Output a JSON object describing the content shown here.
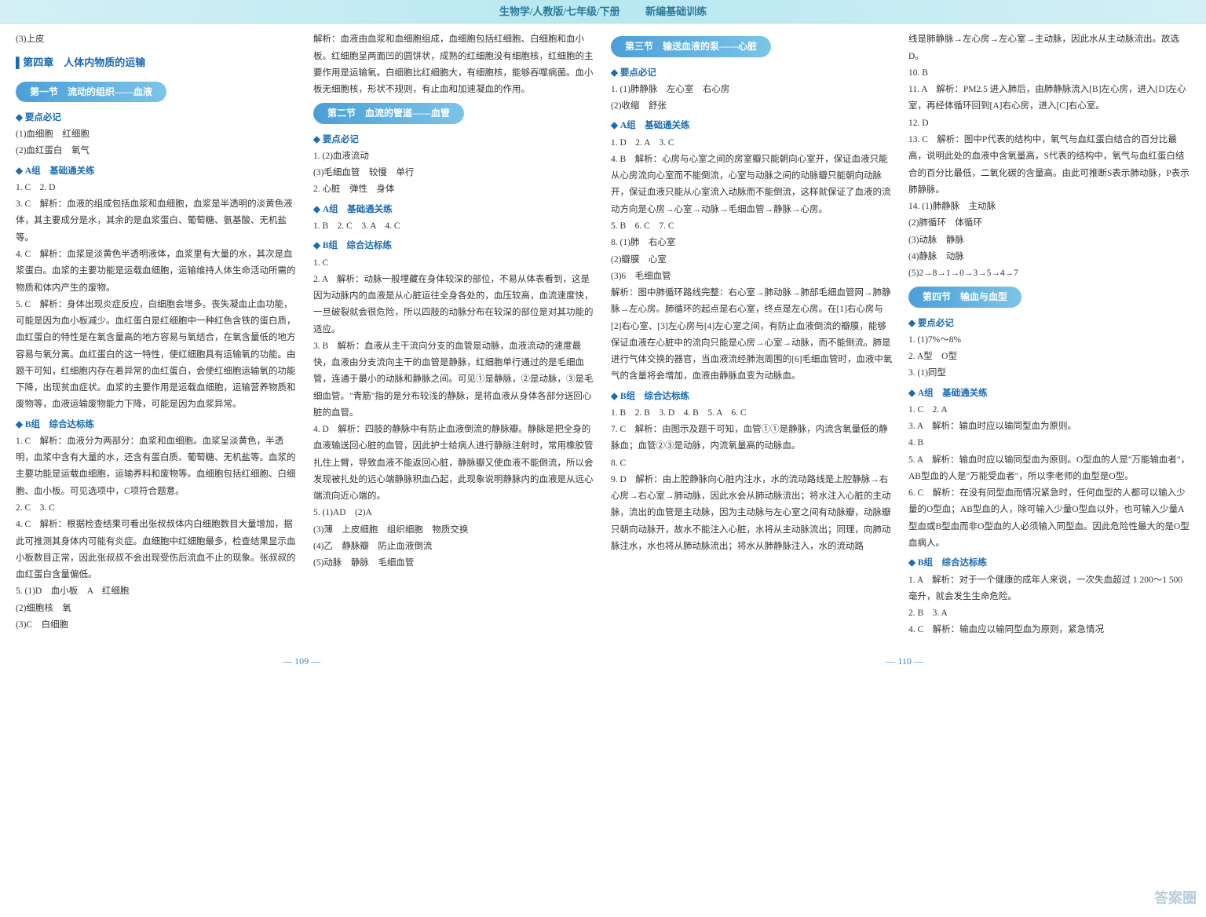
{
  "header": {
    "title": "生物学/人教版/七年级/下册",
    "rightText": "新编基础训练"
  },
  "col1": {
    "pre_item": "(3)上皮",
    "chapter": "第四章　人体内物质的运输",
    "section1_banner": "第一节　流动的组织——血液",
    "yao": "要点必记",
    "y1": "(1)血细胞　红细胞",
    "y2": "(2)血红蛋白　氧气",
    "groupA": "A组　基础通关练",
    "a1": "1. C　2. D",
    "a3": "3. C　解析：血液的组成包括血浆和血细胞，血浆是半透明的淡黄色液体，其主要成分是水，其余的是血浆蛋白、葡萄糖、氨基酸、无机盐等。",
    "a4": "4. C　解析：血浆是淡黄色半透明液体，血浆里有大量的水，其次是血浆蛋白。血浆的主要功能是运载血细胞，运输维持人体生命活动所需的物质和体内产生的废物。",
    "a5": "5. C　解析：身体出现炎症反应，白细胞会增多。丧失凝血止血功能，可能是因为血小板减少。血红蛋白是红细胞中一种红色含铁的蛋白质，血红蛋白的特性是在氧含量高的地方容易与氧结合，在氧含量低的地方容易与氧分离。血红蛋白的这一特性，使红细胞具有运输氧的功能。由题干可知，红细胞内存在着异常的血红蛋白，会使红细胞运输氧的功能下降，出现贫血症状。血浆的主要作用是运载血细胞，运输营养物质和废物等，血液运输废物能力下降，可能是因为血浆异常。",
    "groupB": "B组　综合达标练",
    "b1": "1. C　解析：血液分为两部分：血浆和血细胞。血浆呈淡黄色，半透明，血浆中含有大量的水，还含有蛋白质、葡萄糖、无机盐等。血浆的主要功能是运载血细胞，运输养料和废物等。血细胞包括红细胞、白细胞、血小板。可见选项中，C项符合题意。",
    "b2": "2. C　3. C",
    "b4": "4. C　解析：根据检查结果可看出张叔叔体内白细胞数目大量增加，据此可推测其身体内可能有炎症。血细胞中红细胞最多，检查结果显示血小板数目正常，因此张叔叔不会出现受伤后流血不止的现象。张叔叔的血红蛋白含量偏低。",
    "b5_1": "5. (1)D　血小板　A　红细胞",
    "b5_2": "(2)细胞核　氧",
    "b5_3": "(3)C　白细胞"
  },
  "col2": {
    "top": "解析：血液由血浆和血细胞组成，血细胞包括红细胞、白细胞和血小板。红细胞呈两面凹的圆饼状，成熟的红细胞没有细胞核，红细胞的主要作用是运输氧。白细胞比红细胞大，有细胞核，能够吞噬病菌。血小板无细胞核，形状不规则，有止血和加速凝血的作用。",
    "section2_banner": "第二节　血流的管道——血管",
    "yao": "要点必记",
    "y1": "1. (2)血液流动",
    "y2": "(3)毛细血管　较慢　单行",
    "y3": "2. 心脏　弹性　身体",
    "groupA": "A组　基础通关练",
    "a_line": "1. B　2. C　3. A　4. C",
    "groupB": "B组　综合达标练",
    "b1": "1. C",
    "b2": "2. A　解析：动脉一般埋藏在身体较深的部位，不易从体表看到，这是因为动脉内的血液是从心脏运往全身各处的，血压较高，血流速度快，一旦破裂就会很危险，所以四肢的动脉分布在较深的部位是对其功能的适应。",
    "b3": "3. B　解析：血液从主干流向分支的血管是动脉，血液流动的速度最快，血液由分支流向主干的血管是静脉，红细胞单行通过的是毛细血管，连通于最小的动脉和静脉之间。可见①是静脉，②是动脉，③是毛细血管。\"青筋\"指的是分布较浅的静脉，是将血液从身体各部分送回心脏的血管。",
    "b4": "4. D　解析：四肢的静脉中有防止血液倒流的静脉瓣。静脉是把全身的血液输送回心脏的血管，因此护士给病人进行静脉注射时，常用橡胶管扎住上臂，导致血液不能返回心脏，静脉瓣又使血液不能倒流，所以会发现被扎处的远心端静脉积血凸起，此现象说明静脉内的血液是从远心端流向近心端的。",
    "b5_1": "5. (1)AD　(2)A",
    "b5_2": "(3)薄　上皮细胞　组织细胞　物质交换",
    "b5_3": "(4)乙　静脉瓣　防止血液倒流",
    "b5_4": "(5)动脉　静脉　毛细血管"
  },
  "col3": {
    "section3_banner": "第三节　输送血液的泵——心脏",
    "yao": "要点必记",
    "y1": "1. (1)肺静脉　左心室　右心房",
    "y2": "(2)收缩　舒张",
    "groupA": "A组　基础通关练",
    "a1": "1. D　2. A　3. C",
    "a4": "4. B　解析：心房与心室之间的房室瓣只能朝向心室开，保证血液只能从心房流向心室而不能倒流，心室与动脉之间的动脉瓣只能朝向动脉开，保证血液只能从心室流入动脉而不能倒流，这样就保证了血液的流动方向是心房→心室→动脉→毛细血管→静脉→心房。",
    "a5": "5. B　6. C　7. C",
    "a8_1": "8. (1)肺　右心室",
    "a8_2": "(2)瓣膜　心室",
    "a8_3": "(3)6　毛细血管",
    "a8_ana": "解析：图中肺循环路线完整：右心室→肺动脉→肺部毛细血管网→肺静脉→左心房。肺循环的起点是右心室，终点是左心房。在[1]右心房与[2]右心室、[3]左心房与[4]左心室之间，有防止血液倒流的瓣膜，能够保证血液在心脏中的流向只能是心房→心室→动脉，而不能倒流。肺是进行气体交换的器官，当血液流经肺泡周围的[6]毛细血管时，血液中氧气的含量将会增加，血液由静脉血变为动脉血。",
    "groupB": "B组　综合达标练",
    "b_line": "1. B　2. B　3. D　4. B　5. A　6. C",
    "b7": "7. C　解析：由图示及题干可知，血管①①是静脉，内流含氧量低的静脉血；血管②③是动脉，内流氧量高的动脉血。",
    "b8": "8. C",
    "b9": "9. D　解析：由上腔静脉向心脏内注水，水的流动路线是上腔静脉→右心房→右心室→肺动脉，因此水会从肺动脉流出；将水注入心脏的主动脉，流出的血管是主动脉，因为主动脉与左心室之间有动脉瓣，动脉瓣只朝向动脉开，故水不能注入心脏，水将从主动脉流出；同理，向肺动脉注水，水也将从肺动脉流出；将水从肺静脉注入，水的流动路"
  },
  "col4": {
    "top": "线是肺静脉→左心房→左心室→主动脉，因此水从主动脉流出。故选D。",
    "n10": "10. B",
    "n11": "11. A　解析：PM2.5 进入肺后，由肺静脉流入[B]左心房，进入[D]左心室，再经体循环回到[A]右心房，进入[C]右心室。",
    "n12": "12. D",
    "n13": "13. C　解析：图中P代表的结构中，氧气与血红蛋白结合的百分比最高，说明此处的血液中含氧量高，S代表的结构中，氧气与血红蛋白结合的百分比最低，二氧化碳的含量高。由此可推断S表示肺动脉，P表示肺静脉。",
    "n14_1": "14. (1)肺静脉　主动脉",
    "n14_2": "(2)肺循环　体循环",
    "n14_3": "(3)动脉　静脉",
    "n14_4": "(4)静脉　动脉",
    "n14_5": "(5)2→8→1→0→3→5→4→7",
    "section4_banner": "第四节　输血与血型",
    "yao": "要点必记",
    "y1": "1. (1)7%～8%",
    "y2": "2. A型　O型",
    "y3": "3. (1)同型",
    "groupA": "A组　基础通关练",
    "a1": "1. C　2. A",
    "a3": "3. A　解析：输血时应以输同型血为原则。",
    "a4": "4. B",
    "a5": "5. A　解析：输血时应以输同型血为原则。O型血的人是\"万能输血者\"，AB型血的人是\"万能受血者\"，所以李老师的血型是O型。",
    "a6": "6. C　解析：在没有同型血而情况紧急时，任何血型的人都可以输入少量的O型血；AB型血的人，除可输入少量O型血以外，也可输入少量A型血或B型血而非O型血的人必须输入同型血。因此危险性最大的是O型血病人。",
    "groupB": "B组　综合达标练",
    "b1": "1. A　解析：对于一个健康的成年人来说，一次失血超过 1 200～1 500 毫升，就会发生生命危险。",
    "b2": "2. B　3. A",
    "b4": "4. C　解析：输血应以输同型血为原则，紧急情况"
  },
  "footer": {
    "p109": "— 109 —",
    "p110": "— 110 —"
  },
  "watermark": "答案圈"
}
